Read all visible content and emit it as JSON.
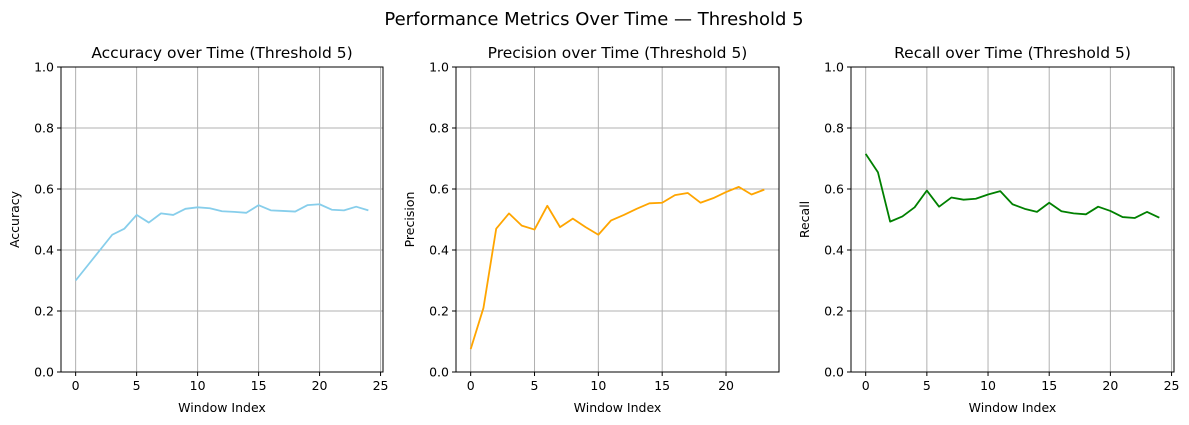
{
  "figure": {
    "suptitle": "Performance Metrics Over Time — Threshold 5"
  },
  "chart_data": [
    {
      "type": "line",
      "title": "Accuracy over Time (Threshold 5)",
      "xlabel": "Window Index",
      "ylabel": "Accuracy",
      "xlim": [
        -1.2,
        25.2
      ],
      "ylim": [
        0,
        1
      ],
      "xticks": [
        "0",
        "5",
        "10",
        "15",
        "20",
        "25"
      ],
      "yticks": [
        "0.0",
        "0.2",
        "0.4",
        "0.6",
        "0.8",
        "1.0"
      ],
      "grid": true,
      "color": "#87ceeb",
      "x": [
        0,
        1,
        2,
        3,
        4,
        5,
        6,
        7,
        8,
        9,
        10,
        11,
        12,
        13,
        14,
        15,
        16,
        17,
        18,
        19,
        20,
        21,
        22,
        23,
        24
      ],
      "y": [
        0.3,
        0.35,
        0.4,
        0.45,
        0.47,
        0.515,
        0.49,
        0.52,
        0.515,
        0.535,
        0.54,
        0.537,
        0.527,
        0.525,
        0.522,
        0.547,
        0.53,
        0.528,
        0.526,
        0.547,
        0.55,
        0.532,
        0.53,
        0.542,
        0.53
      ]
    },
    {
      "type": "line",
      "title": "Precision over Time (Threshold 5)",
      "xlabel": "Window Index",
      "ylabel": "Precision",
      "xlim": [
        -1.15,
        24.15
      ],
      "ylim": [
        0,
        1
      ],
      "xticks": [
        "0",
        "5",
        "10",
        "15",
        "20"
      ],
      "yticks": [
        "0.0",
        "0.2",
        "0.4",
        "0.6",
        "0.8",
        "1.0"
      ],
      "grid": true,
      "color": "#ffa500",
      "x": [
        0,
        1,
        2,
        3,
        4,
        5,
        6,
        7,
        8,
        9,
        10,
        11,
        12,
        13,
        14,
        15,
        16,
        17,
        18,
        19,
        20,
        21,
        22,
        23
      ],
      "y": [
        0.075,
        0.21,
        0.47,
        0.52,
        0.48,
        0.467,
        0.545,
        0.475,
        0.503,
        0.475,
        0.45,
        0.497,
        0.515,
        0.535,
        0.553,
        0.555,
        0.58,
        0.587,
        0.555,
        0.57,
        0.59,
        0.607,
        0.582,
        0.598
      ]
    },
    {
      "type": "line",
      "title": "Recall over Time (Threshold 5)",
      "xlabel": "Window Index",
      "ylabel": "Recall",
      "xlim": [
        -1.2,
        25.2
      ],
      "ylim": [
        0,
        1
      ],
      "xticks": [
        "0",
        "5",
        "10",
        "15",
        "20",
        "25"
      ],
      "yticks": [
        "0.0",
        "0.2",
        "0.4",
        "0.6",
        "0.8",
        "1.0"
      ],
      "grid": true,
      "color": "#008000",
      "x": [
        0,
        1,
        2,
        3,
        4,
        5,
        6,
        7,
        8,
        9,
        10,
        11,
        12,
        13,
        14,
        15,
        16,
        17,
        18,
        19,
        20,
        21,
        22,
        23,
        24
      ],
      "y": [
        0.715,
        0.655,
        0.493,
        0.51,
        0.54,
        0.595,
        0.542,
        0.572,
        0.565,
        0.568,
        0.582,
        0.593,
        0.55,
        0.535,
        0.525,
        0.555,
        0.527,
        0.52,
        0.517,
        0.542,
        0.528,
        0.508,
        0.505,
        0.525,
        0.506
      ]
    }
  ]
}
